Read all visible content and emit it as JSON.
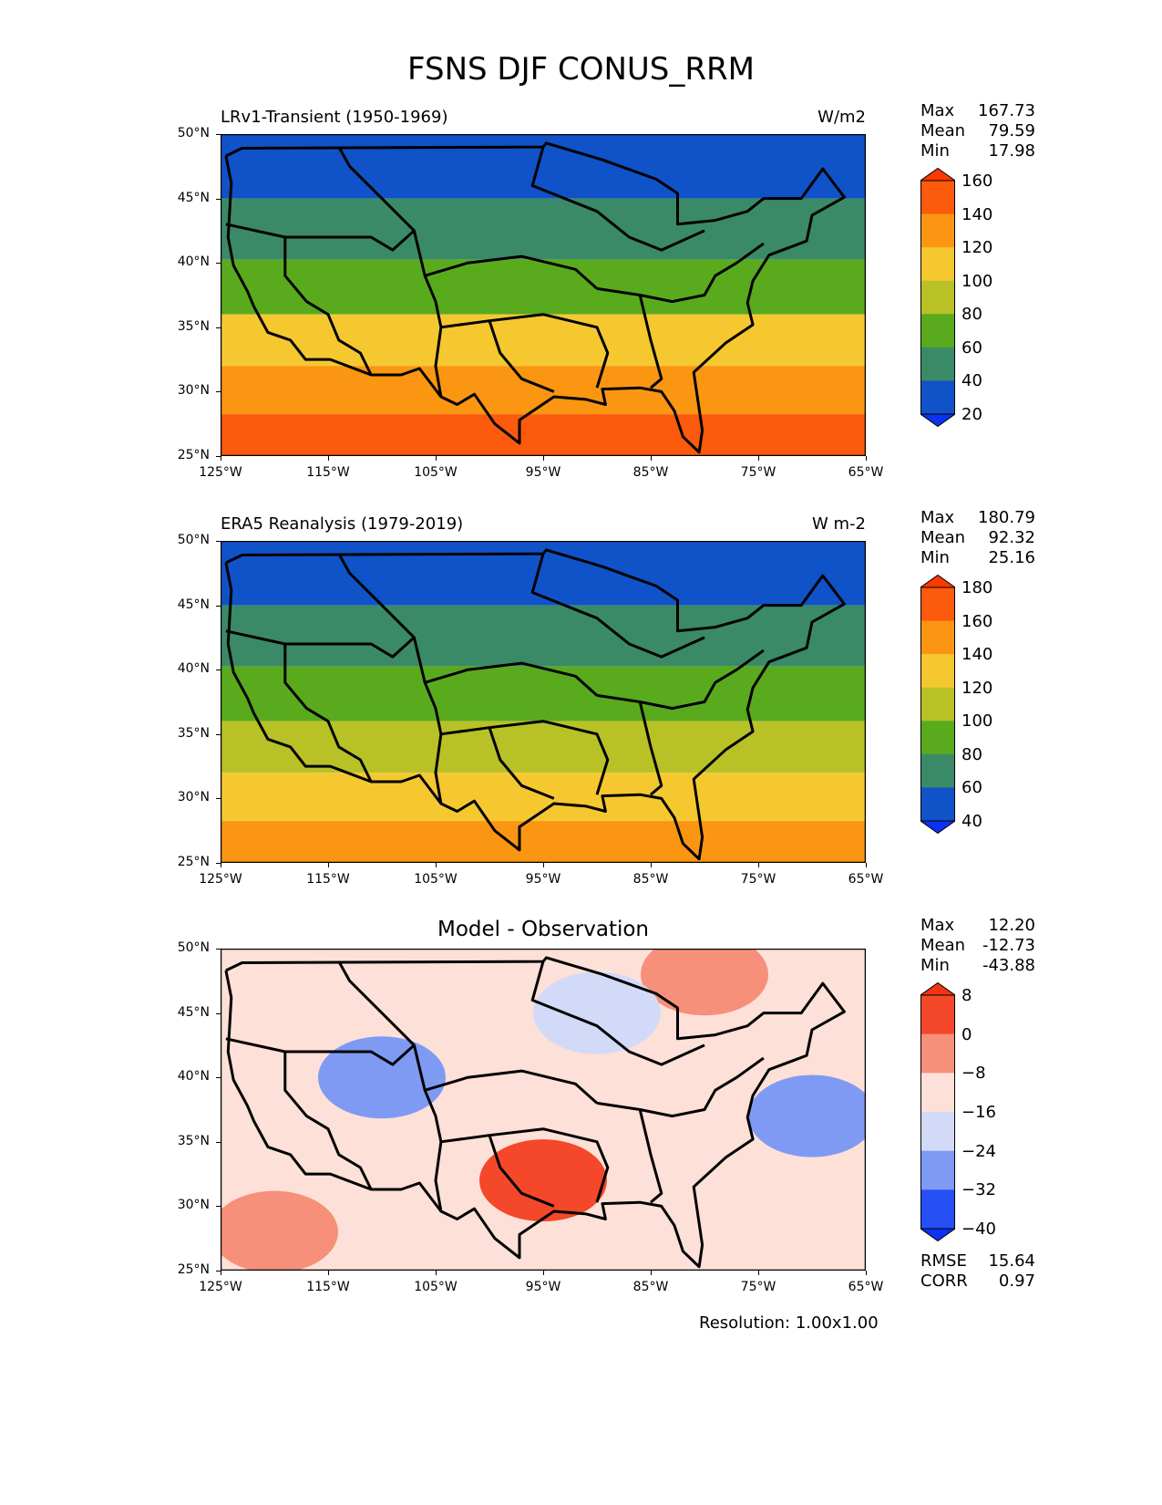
{
  "title": "FSNS DJF CONUS_RRM",
  "footer": "Resolution: 1.00x1.00",
  "x_ticks": [
    "125°W",
    "115°W",
    "105°W",
    "95°W",
    "85°W",
    "75°W",
    "65°W"
  ],
  "y_ticks": [
    "50°N",
    "45°N",
    "40°N",
    "35°N",
    "30°N",
    "25°N"
  ],
  "chart_data": [
    {
      "type": "heatmap",
      "title": "LRv1-Transient (1950-1969)",
      "units": "W/m2",
      "xlim": [
        -125,
        -65
      ],
      "ylim": [
        25,
        50
      ],
      "stats": [
        {
          "label": "Max",
          "value": "167.73"
        },
        {
          "label": "Mean",
          "value": "79.59"
        },
        {
          "label": "Min",
          "value": "17.98"
        }
      ],
      "colorbar": {
        "levels": [
          "20",
          "40",
          "60",
          "80",
          "100",
          "120",
          "140",
          "160"
        ],
        "colors": [
          "#1052c8",
          "#3a8a68",
          "#5aaa1e",
          "#b8c226",
          "#f6c830",
          "#fa9612",
          "#fc5a0c"
        ],
        "under": "#0a32f0",
        "over": "#ff3a00"
      },
      "latitude_bands": [
        {
          "lat": 47.5,
          "value": 30
        },
        {
          "lat": 42.5,
          "value": 45
        },
        {
          "lat": 38.0,
          "value": 70
        },
        {
          "lat": 34.0,
          "value": 100
        },
        {
          "lat": 30.0,
          "value": 125
        },
        {
          "lat": 26.5,
          "value": 150
        }
      ]
    },
    {
      "type": "heatmap",
      "title": "ERA5 Reanalysis (1979-2019)",
      "units": "W m-2",
      "xlim": [
        -125,
        -65
      ],
      "ylim": [
        25,
        50
      ],
      "stats": [
        {
          "label": "Max",
          "value": "180.79"
        },
        {
          "label": "Mean",
          "value": "92.32"
        },
        {
          "label": "Min",
          "value": "25.16"
        }
      ],
      "colorbar": {
        "levels": [
          "40",
          "60",
          "80",
          "100",
          "120",
          "140",
          "160",
          "180"
        ],
        "colors": [
          "#1052c8",
          "#3a8a68",
          "#5aaa1e",
          "#b8c226",
          "#f6c830",
          "#fa9612",
          "#fc5a0c"
        ],
        "under": "#0a32f0",
        "over": "#ff3a00"
      },
      "latitude_bands": [
        {
          "lat": 47.5,
          "value": 45
        },
        {
          "lat": 42.5,
          "value": 60
        },
        {
          "lat": 38.0,
          "value": 90
        },
        {
          "lat": 34.0,
          "value": 115
        },
        {
          "lat": 30.0,
          "value": 135
        },
        {
          "lat": 26.5,
          "value": 155
        }
      ]
    },
    {
      "type": "heatmap",
      "title": "Model - Observation",
      "units": "",
      "xlim": [
        -125,
        -65
      ],
      "ylim": [
        25,
        50
      ],
      "stats": [
        {
          "label": "Max",
          "value": "12.20"
        },
        {
          "label": "Mean",
          "value": "-12.73"
        },
        {
          "label": "Min",
          "value": "-43.88"
        }
      ],
      "extra_stats": [
        {
          "label": "RMSE",
          "value": "15.64"
        },
        {
          "label": "CORR",
          "value": "0.97"
        }
      ],
      "colorbar": {
        "levels": [
          "−40",
          "−32",
          "−24",
          "−16",
          "−8",
          "0",
          "8"
        ],
        "colors": [
          "#2650f5",
          "#7f9af2",
          "#d2daf8",
          "#fde0d8",
          "#f7907a",
          "#f5472a"
        ],
        "under": "#0a32f0",
        "over": "#f03510"
      },
      "regions": [
        {
          "lon": -110,
          "lat": 40,
          "value": -30
        },
        {
          "lon": -70,
          "lat": 37,
          "value": -28
        },
        {
          "lon": -95,
          "lat": 32,
          "value": 2
        },
        {
          "lon": -120,
          "lat": 28,
          "value": -2
        },
        {
          "lon": -80,
          "lat": 48,
          "value": -4
        },
        {
          "lon": -90,
          "lat": 45,
          "value": -18
        }
      ]
    }
  ]
}
